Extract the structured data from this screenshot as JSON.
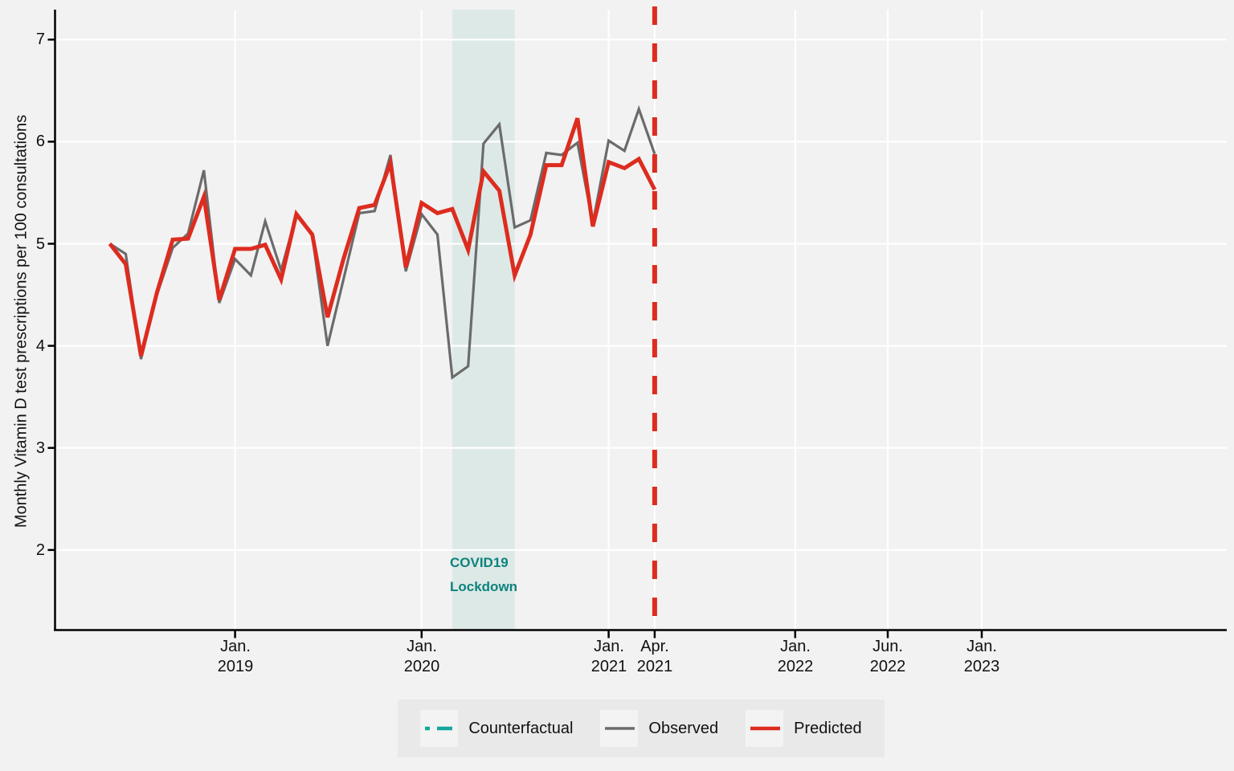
{
  "chart_data": {
    "type": "line",
    "title": "",
    "ylabel": "Monthly Vitamin D test prescriptions per 100 consultations",
    "xlabel": "",
    "ylim": [
      1.22,
      7.29
    ],
    "grid": true,
    "legend_position": "bottom",
    "y_ticks": [
      2,
      3,
      4,
      5,
      6,
      7
    ],
    "x_ticks": [
      {
        "line1": "Jan.",
        "line2": "2019"
      },
      {
        "line1": "Jan.",
        "line2": "2020"
      },
      {
        "line1": "Jan.",
        "line2": "2021"
      },
      {
        "line1": "Apr.",
        "line2": "2021"
      },
      {
        "line1": "Jan.",
        "line2": "2022"
      },
      {
        "line1": "Jun.",
        "line2": "2022"
      },
      {
        "line1": "Jan.",
        "line2": "2023"
      }
    ],
    "x": [
      "2018-05",
      "2018-06",
      "2018-07",
      "2018-08",
      "2018-09",
      "2018-10",
      "2018-11",
      "2018-12",
      "2019-01",
      "2019-02",
      "2019-03",
      "2019-04",
      "2019-05",
      "2019-06",
      "2019-07",
      "2019-08",
      "2019-09",
      "2019-10",
      "2019-11",
      "2019-12",
      "2020-01",
      "2020-02",
      "2020-03",
      "2020-04",
      "2020-05",
      "2020-06",
      "2020-07",
      "2020-08",
      "2020-09",
      "2020-10",
      "2020-11",
      "2020-12",
      "2021-01",
      "2021-02",
      "2021-03",
      "2021-04"
    ],
    "series": [
      {
        "name": "Observed",
        "color": "#6b6b6b",
        "values": [
          5.0,
          4.9,
          3.87,
          4.5,
          4.96,
          5.1,
          5.72,
          4.42,
          4.85,
          4.69,
          5.22,
          4.74,
          5.28,
          5.08,
          4.0,
          4.65,
          5.3,
          5.32,
          5.87,
          4.73,
          5.29,
          5.09,
          3.69,
          3.8,
          5.98,
          6.17,
          5.16,
          5.23,
          5.89,
          5.87,
          5.99,
          5.2,
          6.01,
          5.91,
          6.32,
          5.88
        ]
      },
      {
        "name": "Predicted",
        "color": "#dd2c1f",
        "values": [
          5.0,
          4.8,
          3.9,
          4.52,
          5.04,
          5.05,
          5.46,
          4.45,
          4.95,
          4.95,
          4.99,
          4.65,
          5.29,
          5.09,
          4.28,
          4.85,
          5.35,
          5.38,
          5.79,
          4.77,
          5.4,
          5.3,
          5.34,
          4.94,
          5.71,
          5.52,
          4.69,
          5.09,
          5.77,
          5.77,
          6.23,
          5.17,
          5.8,
          5.74,
          5.83,
          5.53
        ]
      }
    ],
    "band": {
      "from": "2020-03",
      "to": "2020-07",
      "color": "#dde9e7"
    },
    "annotation": {
      "line1": "COVID19",
      "line2": "Lockdown",
      "color": "#0d837c"
    },
    "vline": {
      "date": "2021-04",
      "style": "dashed",
      "color": "#dd2c1f"
    },
    "legend": {
      "items": [
        {
          "label": "Counterfactual",
          "style": "dashed",
          "color": "#14a89b"
        },
        {
          "label": "Observed",
          "style": "solid",
          "color": "#6b6b6b"
        },
        {
          "label": "Predicted",
          "style": "solid",
          "color": "#dd2c1f"
        }
      ]
    }
  }
}
